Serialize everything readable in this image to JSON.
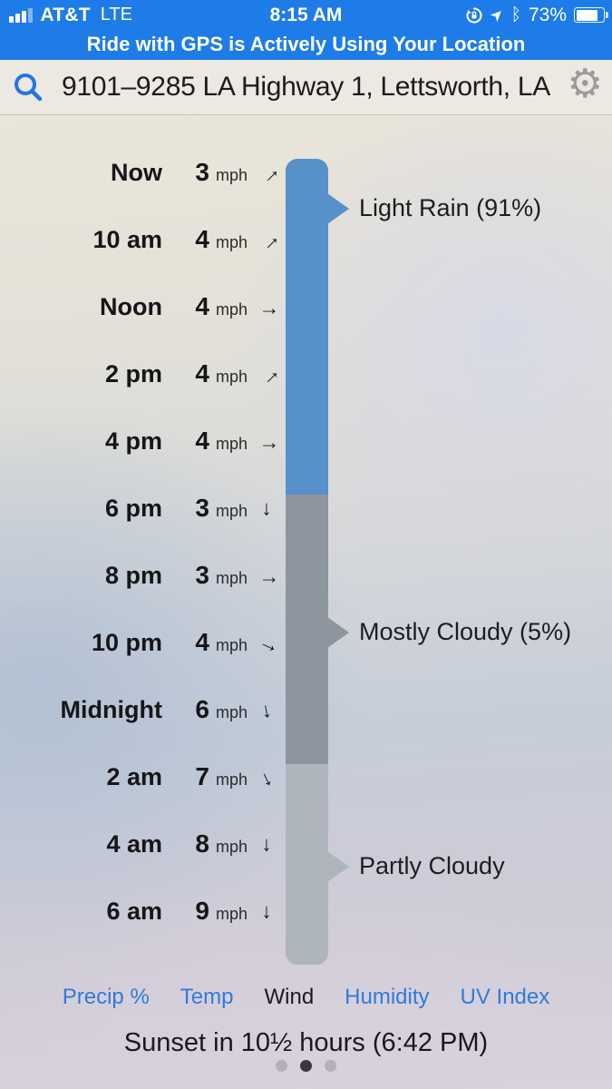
{
  "status_bar": {
    "carrier": "AT&T",
    "network": "LTE",
    "time": "8:15 AM",
    "battery_percent": "73%",
    "icons": [
      "cell-signal",
      "orientation-lock",
      "location-arrow",
      "bluetooth",
      "battery"
    ]
  },
  "banner": {
    "text": "Ride with GPS is Actively Using Your Location"
  },
  "search": {
    "address": "9101–9285 LA Highway 1, Lettsworth, LA"
  },
  "forecast": {
    "rows": [
      {
        "time": "Now",
        "speed": "3",
        "unit": "mph",
        "direction_deg": -45
      },
      {
        "time": "10 am",
        "speed": "4",
        "unit": "mph",
        "direction_deg": -45
      },
      {
        "time": "Noon",
        "speed": "4",
        "unit": "mph",
        "direction_deg": 0
      },
      {
        "time": "2 pm",
        "speed": "4",
        "unit": "mph",
        "direction_deg": -45
      },
      {
        "time": "4 pm",
        "speed": "4",
        "unit": "mph",
        "direction_deg": 0
      },
      {
        "time": "6 pm",
        "speed": "3",
        "unit": "mph",
        "direction_deg": 90
      },
      {
        "time": "8 pm",
        "speed": "3",
        "unit": "mph",
        "direction_deg": 0
      },
      {
        "time": "10 pm",
        "speed": "4",
        "unit": "mph",
        "direction_deg": 25
      },
      {
        "time": "Midnight",
        "speed": "6",
        "unit": "mph",
        "direction_deg": 80
      },
      {
        "time": "2 am",
        "speed": "7",
        "unit": "mph",
        "direction_deg": 65
      },
      {
        "time": "4 am",
        "speed": "8",
        "unit": "mph",
        "direction_deg": 90
      },
      {
        "time": "6 am",
        "speed": "9",
        "unit": "mph",
        "direction_deg": 90
      }
    ],
    "conditions": [
      {
        "label": "Light Rain (91%)",
        "color": "#5891C9"
      },
      {
        "label": "Mostly Cloudy (5%)",
        "color": "#8D959F"
      },
      {
        "label": "Partly Cloudy",
        "color": "#AFB5BD"
      }
    ]
  },
  "tabs": [
    {
      "label": "Precip %",
      "active": false
    },
    {
      "label": "Temp",
      "active": false
    },
    {
      "label": "Wind",
      "active": true
    },
    {
      "label": "Humidity",
      "active": false
    },
    {
      "label": "UV Index",
      "active": false
    }
  ],
  "footer": {
    "sunset_text": "Sunset in 10½ hours (6:42 PM)"
  },
  "page_indicator": {
    "total": 3,
    "active_index": 1
  },
  "colors": {
    "ios_blue": "#1E7CE8",
    "tab_blue": "#2E7CD9",
    "search_background": "#ECE9E2",
    "segment_light_rain": "#5891C9",
    "segment_mostly_cloudy": "#8D959F",
    "segment_partly_cloudy": "#AFB5BD"
  },
  "chart_data": {
    "type": "table",
    "title": "Hourly wind forecast (Wind tab)",
    "categories": [
      "Now",
      "10 am",
      "Noon",
      "2 pm",
      "4 pm",
      "6 pm",
      "8 pm",
      "10 pm",
      "Midnight",
      "2 am",
      "4 am",
      "6 am"
    ],
    "series": [
      {
        "name": "Wind speed (mph)",
        "values": [
          3,
          4,
          4,
          4,
          4,
          3,
          3,
          4,
          6,
          7,
          8,
          9
        ]
      }
    ],
    "wind_direction_deg_clockwise_from_east": [
      -45,
      -45,
      0,
      -45,
      0,
      90,
      0,
      25,
      80,
      65,
      90,
      90
    ],
    "annotations": [
      "Light Rain (91%)",
      "Mostly Cloudy (5%)",
      "Partly Cloudy"
    ]
  }
}
